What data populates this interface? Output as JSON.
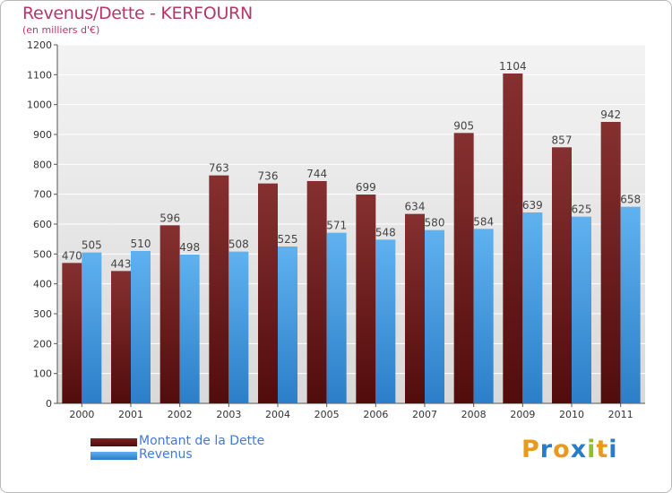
{
  "chart_data": {
    "type": "bar",
    "title": "Revenus/Dette - KERFOURN",
    "subtitle": "(en milliers d'€)",
    "xlabel": "",
    "ylabel": "",
    "ylim": [
      0,
      1200
    ],
    "yticks": [
      0,
      100,
      200,
      300,
      400,
      500,
      600,
      700,
      800,
      900,
      1000,
      1100,
      1200
    ],
    "grid": true,
    "categories": [
      "2000",
      "2001",
      "2002",
      "2003",
      "2004",
      "2005",
      "2006",
      "2007",
      "2008",
      "2009",
      "2010",
      "2011"
    ],
    "series": [
      {
        "name": "Montant de la Dette",
        "color": "#7a2424",
        "values": [
          470,
          443,
          596,
          763,
          736,
          744,
          699,
          634,
          905,
          1104,
          857,
          942
        ]
      },
      {
        "name": "Revenus",
        "color": "#4ea3e4",
        "values": [
          505,
          510,
          498,
          508,
          525,
          571,
          548,
          580,
          584,
          639,
          625,
          658
        ]
      }
    ],
    "legend_position": "bottom-left"
  },
  "logo": {
    "letters": [
      "P",
      "r",
      "o",
      "x",
      "i",
      "t",
      "i"
    ],
    "colors": [
      "#e89a1e",
      "#2a7cc7",
      "#e89a1e",
      "#2a7cc7",
      "#8fbf2e",
      "#e89a1e",
      "#2a7cc7"
    ]
  }
}
